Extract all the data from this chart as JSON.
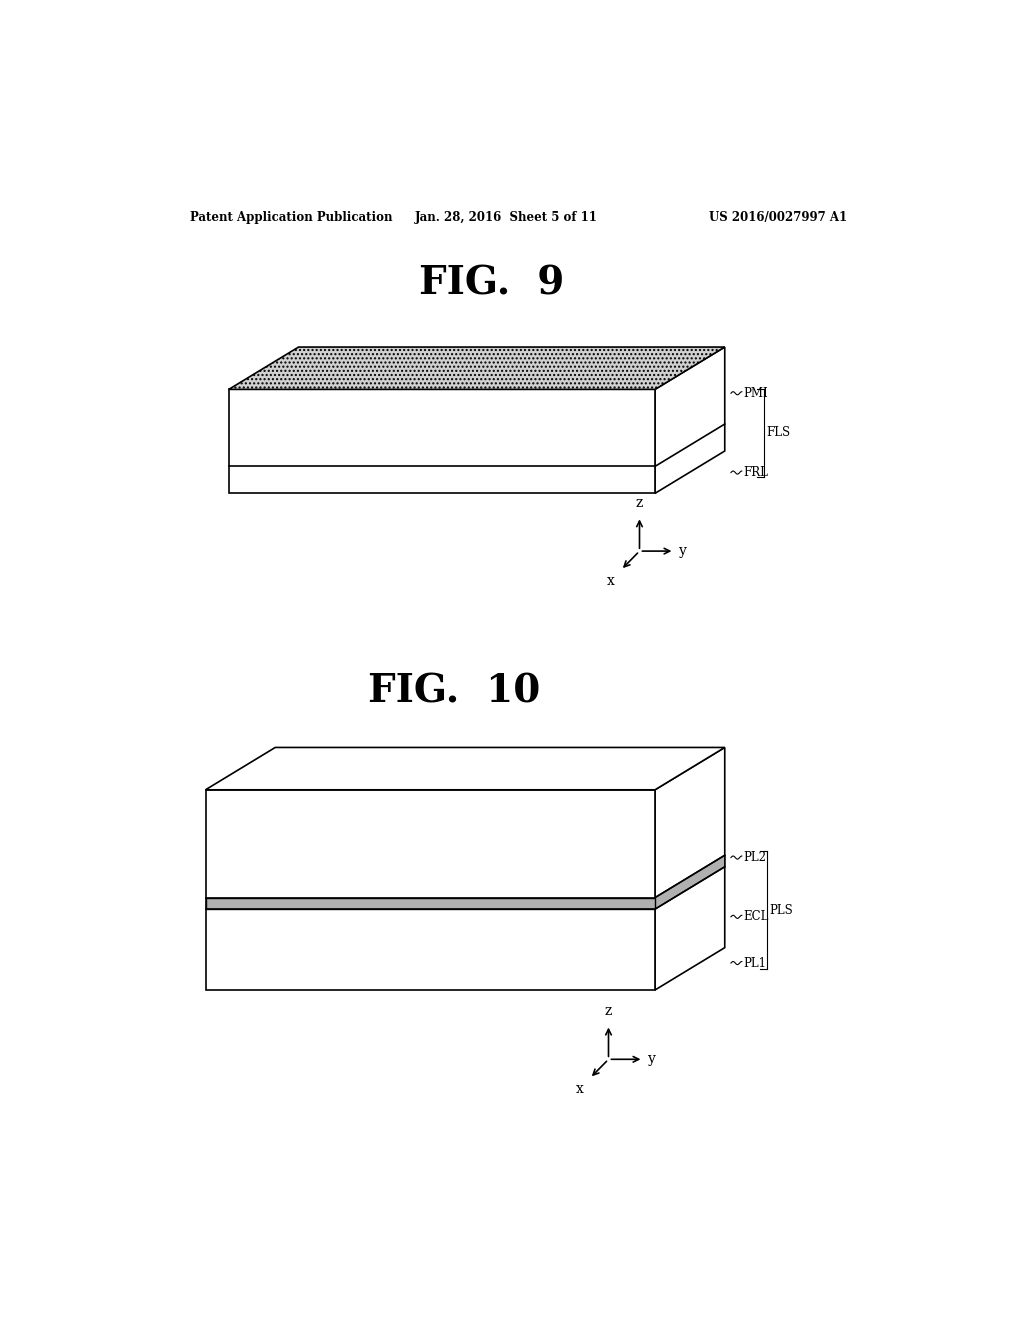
{
  "bg_color": "#ffffff",
  "header_left": "Patent Application Publication",
  "header_mid": "Jan. 28, 2016  Sheet 5 of 11",
  "header_right": "US 2016/0027997 A1",
  "fig9_title": "FIG.  9",
  "fig10_title": "FIG.  10"
}
